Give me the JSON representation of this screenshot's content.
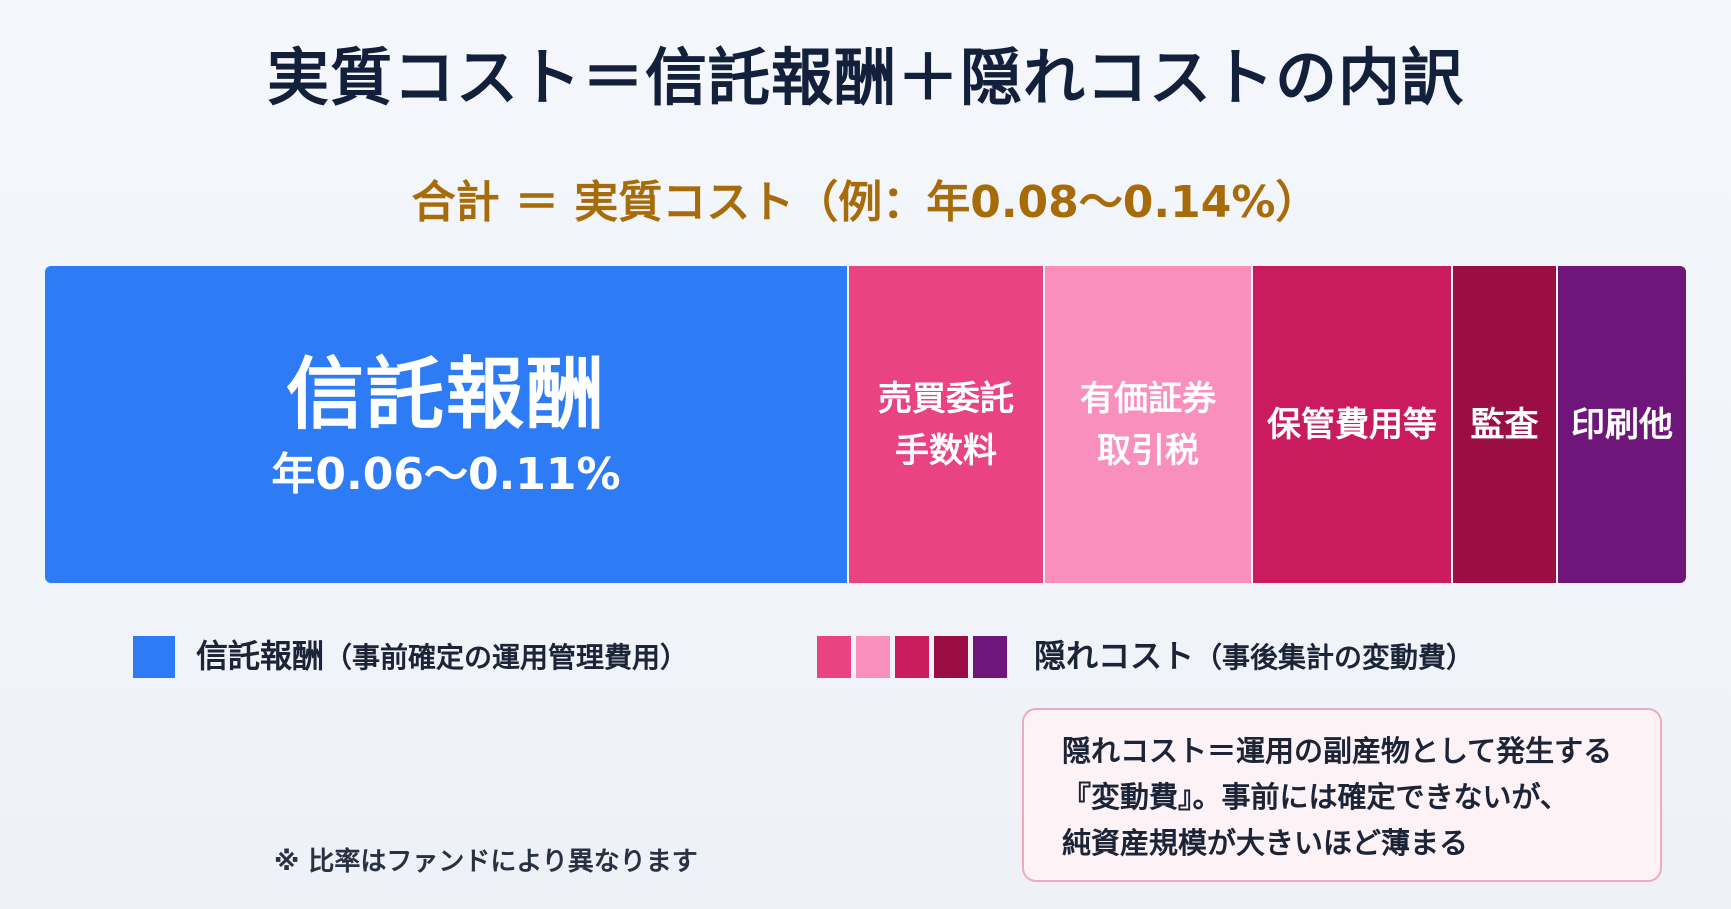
{
  "title": "実質コスト＝信託報酬＋隠れコストの内訳",
  "subtitle": "合計 ＝ 実質コスト（例：年0.08〜0.14%）",
  "bar": {
    "segments": [
      {
        "key": "trust-fee",
        "label": "信託報酬",
        "value": "年0.06〜0.11%",
        "color": "#2e7bf6"
      },
      {
        "key": "brokerage-commission",
        "label": "売買委託\n手数料",
        "color": "#e94383"
      },
      {
        "key": "securities-tax",
        "label": "有価証券\n取引税",
        "color": "#f98fbd"
      },
      {
        "key": "custody-fee",
        "label": "保管費用等",
        "color": "#c91b5e"
      },
      {
        "key": "audit",
        "label": "監査",
        "color": "#9b0e44"
      },
      {
        "key": "printing-other",
        "label": "印刷他",
        "color": "#6e1679"
      }
    ]
  },
  "legend": {
    "trust_fee": {
      "label": "信託報酬",
      "note": "（事前確定の運用管理費用）",
      "color": "#2e7bf6"
    },
    "hidden_cost": {
      "label": "隠れコスト",
      "note": "（事後集計の変動費）",
      "colors": [
        "#e94383",
        "#f98fbd",
        "#c91b5e",
        "#9b0e44",
        "#6e1679"
      ]
    }
  },
  "note": {
    "lines": [
      "隠れコスト＝運用の副産物として発生する",
      "『変動費』。事前には確定できないが、",
      "純資産規模が大きいほど薄まる"
    ]
  },
  "footnote": "※ 比率はファンドにより異なります"
}
